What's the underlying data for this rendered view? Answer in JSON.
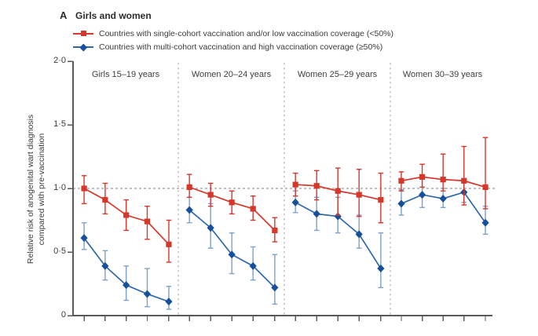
{
  "chart_data": {
    "type": "line",
    "title_letter": "A",
    "title": "Girls and women",
    "ylabel_line1": "Relative risk of anogenital wart diagnosis",
    "ylabel_line2": "compared with pre-vaccination",
    "ylim": [
      0,
      2.0
    ],
    "reference_line": 1.0,
    "grid": "off",
    "legend_position": "top-left",
    "y_ticks": [
      {
        "value": 2.0,
        "label": "2·0"
      },
      {
        "value": 1.5,
        "label": "1·5"
      },
      {
        "value": 1.0,
        "label": "1·0"
      },
      {
        "value": 0.5,
        "label": "0·5"
      },
      {
        "value": 0.0,
        "label": "0"
      }
    ],
    "x_ticks_note": "5 unlabelled ticks per panel (tick labels cropped out of view)",
    "legend": [
      {
        "name": "single-cohort",
        "marker": "square",
        "color": "#d6372b",
        "label": "Countries with single-cohort vaccination and/or low vaccination coverage (<50%)"
      },
      {
        "name": "multi-cohort",
        "marker": "diamond",
        "color": "#16509c",
        "label": "Countries with multi-cohort vaccination and high vaccination coverage (≥50%)"
      }
    ],
    "panels": [
      {
        "label": "Girls 15–19 years",
        "series": [
          {
            "name": "single-cohort",
            "points": [
              {
                "v": 1.0,
                "lo": 0.88,
                "hi": 1.1
              },
              {
                "v": 0.91,
                "lo": 0.8,
                "hi": 1.04
              },
              {
                "v": 0.79,
                "lo": 0.67,
                "hi": 0.91
              },
              {
                "v": 0.74,
                "lo": 0.6,
                "hi": 0.86
              },
              {
                "v": 0.56,
                "lo": 0.42,
                "hi": 0.75
              }
            ]
          },
          {
            "name": "multi-cohort",
            "points": [
              {
                "v": 0.61,
                "lo": 0.52,
                "hi": 0.73
              },
              {
                "v": 0.39,
                "lo": 0.28,
                "hi": 0.51
              },
              {
                "v": 0.24,
                "lo": 0.12,
                "hi": 0.39
              },
              {
                "v": 0.17,
                "lo": 0.07,
                "hi": 0.37
              },
              {
                "v": 0.11,
                "lo": 0.05,
                "hi": 0.23
              }
            ]
          }
        ]
      },
      {
        "label": "Women 20–24 years",
        "series": [
          {
            "name": "single-cohort",
            "points": [
              {
                "v": 1.01,
                "lo": 0.93,
                "hi": 1.11
              },
              {
                "v": 0.95,
                "lo": 0.86,
                "hi": 1.04
              },
              {
                "v": 0.89,
                "lo": 0.8,
                "hi": 0.98
              },
              {
                "v": 0.84,
                "lo": 0.75,
                "hi": 0.94
              },
              {
                "v": 0.67,
                "lo": 0.58,
                "hi": 0.77
              }
            ]
          },
          {
            "name": "multi-cohort",
            "points": [
              {
                "v": 0.83,
                "lo": 0.73,
                "hi": 0.93
              },
              {
                "v": 0.69,
                "lo": 0.53,
                "hi": 0.88
              },
              {
                "v": 0.48,
                "lo": 0.33,
                "hi": 0.65
              },
              {
                "v": 0.39,
                "lo": 0.28,
                "hi": 0.54
              },
              {
                "v": 0.22,
                "lo": 0.09,
                "hi": 0.48
              }
            ]
          }
        ]
      },
      {
        "label": "Women 25–29 years",
        "series": [
          {
            "name": "single-cohort",
            "points": [
              {
                "v": 1.03,
                "lo": 0.94,
                "hi": 1.12
              },
              {
                "v": 1.02,
                "lo": 0.91,
                "hi": 1.14
              },
              {
                "v": 0.98,
                "lo": 0.79,
                "hi": 1.16
              },
              {
                "v": 0.95,
                "lo": 0.78,
                "hi": 1.15
              },
              {
                "v": 0.91,
                "lo": 0.73,
                "hi": 1.12
              }
            ]
          },
          {
            "name": "multi-cohort",
            "points": [
              {
                "v": 0.89,
                "lo": 0.81,
                "hi": 0.98
              },
              {
                "v": 0.8,
                "lo": 0.67,
                "hi": 0.93
              },
              {
                "v": 0.78,
                "lo": 0.65,
                "hi": 0.93
              },
              {
                "v": 0.64,
                "lo": 0.53,
                "hi": 0.79
              },
              {
                "v": 0.37,
                "lo": 0.22,
                "hi": 0.65
              }
            ]
          }
        ]
      },
      {
        "label": "Women 30–39 years",
        "series": [
          {
            "name": "single-cohort",
            "points": [
              {
                "v": 1.06,
                "lo": 0.98,
                "hi": 1.13
              },
              {
                "v": 1.09,
                "lo": 1.01,
                "hi": 1.19
              },
              {
                "v": 1.07,
                "lo": 0.98,
                "hi": 1.27
              },
              {
                "v": 1.06,
                "lo": 0.87,
                "hi": 1.33
              },
              {
                "v": 1.01,
                "lo": 0.84,
                "hi": 1.4
              }
            ]
          },
          {
            "name": "multi-cohort",
            "points": [
              {
                "v": 0.88,
                "lo": 0.79,
                "hi": 0.99
              },
              {
                "v": 0.95,
                "lo": 0.85,
                "hi": 1.08
              },
              {
                "v": 0.92,
                "lo": 0.85,
                "hi": 1.0
              },
              {
                "v": 0.97,
                "lo": 0.89,
                "hi": 1.06
              },
              {
                "v": 0.73,
                "lo": 0.64,
                "hi": 0.86
              }
            ]
          }
        ]
      }
    ]
  }
}
